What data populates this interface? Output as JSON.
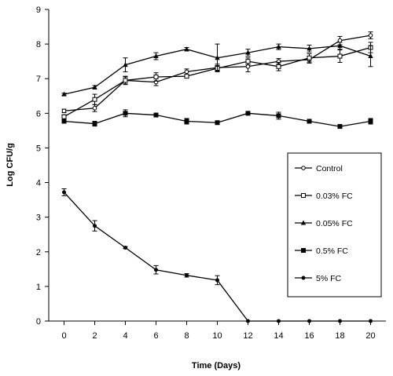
{
  "chart_data": {
    "type": "line",
    "title": "",
    "xlabel": "Time (Days)",
    "ylabel": "Log CFU/g",
    "xlim": [
      -1,
      21
    ],
    "ylim": [
      0,
      9
    ],
    "xticks": [
      0,
      2,
      4,
      6,
      8,
      10,
      12,
      14,
      16,
      18,
      20
    ],
    "yticks": [
      0,
      1,
      2,
      3,
      4,
      5,
      6,
      7,
      8,
      9
    ],
    "grid": false,
    "legend_position": "right",
    "x": [
      0,
      2,
      4,
      6,
      8,
      10,
      12,
      14,
      16,
      18,
      20
    ],
    "series": [
      {
        "name": "Control",
        "marker": "open-circle",
        "values": [
          6.07,
          6.15,
          6.95,
          6.9,
          7.2,
          7.32,
          7.35,
          7.5,
          7.55,
          8.1,
          8.25
        ],
        "errors": [
          0.05,
          0.1,
          0.12,
          0.1,
          0.08,
          0.1,
          0.15,
          0.08,
          0.1,
          0.12,
          0.1
        ]
      },
      {
        "name": "0.03% FC",
        "marker": "open-square",
        "values": [
          5.9,
          6.4,
          6.95,
          7.05,
          7.07,
          7.3,
          7.5,
          7.35,
          7.6,
          7.65,
          7.9
        ],
        "errors": [
          0.06,
          0.15,
          0.1,
          0.12,
          0.05,
          0.08,
          0.1,
          0.12,
          0.12,
          0.18,
          0.15
        ]
      },
      {
        "name": "0.05% FC",
        "marker": "triangle",
        "values": [
          6.55,
          6.75,
          7.4,
          7.65,
          7.85,
          7.6,
          7.75,
          7.92,
          7.87,
          7.95,
          7.65
        ],
        "errors": [
          0.03,
          0.05,
          0.2,
          0.1,
          0.05,
          0.4,
          0.1,
          0.08,
          0.1,
          0.1,
          0.3
        ]
      },
      {
        "name": "0.5% FC",
        "marker": "filled-square",
        "values": [
          5.77,
          5.7,
          6.0,
          5.95,
          5.77,
          5.73,
          6.0,
          5.93,
          5.77,
          5.62,
          5.77
        ],
        "errors": [
          0.05,
          0.07,
          0.1,
          0.05,
          0.08,
          0.05,
          0.05,
          0.1,
          0.05,
          0.05,
          0.08
        ]
      },
      {
        "name": "5% FC",
        "marker": "filled-circle",
        "values": [
          3.72,
          2.75,
          2.12,
          1.48,
          1.32,
          1.18,
          0,
          0,
          0,
          0,
          0
        ],
        "errors": [
          0.1,
          0.15,
          0.03,
          0.12,
          0.05,
          0.13,
          0,
          0,
          0,
          0,
          0
        ]
      }
    ]
  }
}
